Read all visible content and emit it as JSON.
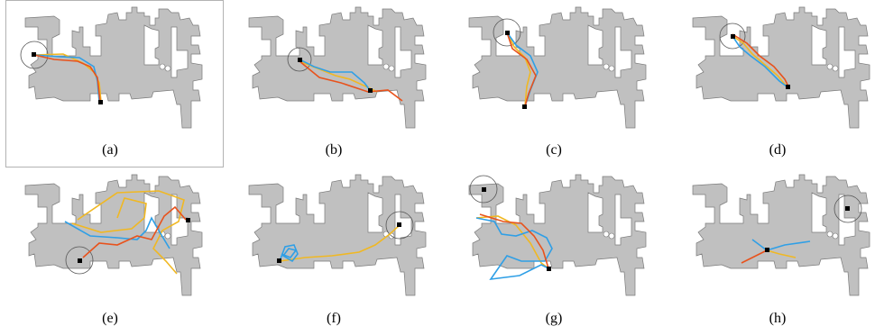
{
  "colors": {
    "map": "#c0c0c0",
    "map_edge": "#7a7a7a",
    "path_blue": "#2f9fe6",
    "path_orange": "#f0b823",
    "path_red": "#e8521c",
    "goal_circle": "#555555",
    "marker": "#000000"
  },
  "figure": {
    "panels": [
      {
        "label": "(a)",
        "highlighted": true
      },
      {
        "label": "(b)"
      },
      {
        "label": "(c)"
      },
      {
        "label": "(d)"
      },
      {
        "label": "(e)"
      },
      {
        "label": "(f)"
      },
      {
        "label": "(g)"
      },
      {
        "label": "(h)"
      }
    ]
  }
}
